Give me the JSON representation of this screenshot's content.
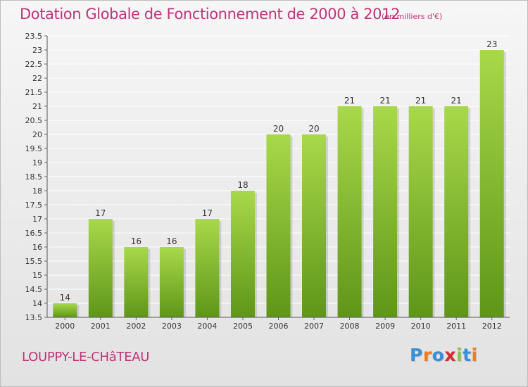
{
  "title": "Dotation Globale de Fonctionnement de 2000 à 2012",
  "unit_note": "(en milliers d'€)",
  "commune": "LOUPPY-LE-CHâTEAU",
  "logo": {
    "text": "Proxiti",
    "colors": [
      "#3a8fd6",
      "#f07a1a",
      "#3a8fd6",
      "#d42c2c",
      "#8bc34a",
      "#3a8fd6",
      "#f07a1a"
    ]
  },
  "colors": {
    "accent": "#c0337a",
    "bar_light": "#a8d94a",
    "bar_dark": "#5f9618",
    "grid": "#ffffff",
    "axis_text": "#333333"
  },
  "chart_data": {
    "type": "bar",
    "title": "Dotation Globale de Fonctionnement de 2000 à 2012",
    "categories": [
      "2000",
      "2001",
      "2002",
      "2003",
      "2004",
      "2005",
      "2006",
      "2007",
      "2008",
      "2009",
      "2010",
      "2011",
      "2012"
    ],
    "values": [
      14,
      17,
      16,
      16,
      17,
      18,
      20,
      20,
      21,
      21,
      21,
      21,
      23
    ],
    "ylim": [
      13.5,
      23.5
    ],
    "yticks": [
      "13.5",
      "14",
      "14.5",
      "15",
      "15.5",
      "16",
      "16.5",
      "17",
      "17.5",
      "18",
      "18.5",
      "19",
      "19.5",
      "20",
      "20.5",
      "21",
      "21.5",
      "22",
      "22.5",
      "23",
      "23.5"
    ],
    "grid": true,
    "data_labels": true
  }
}
